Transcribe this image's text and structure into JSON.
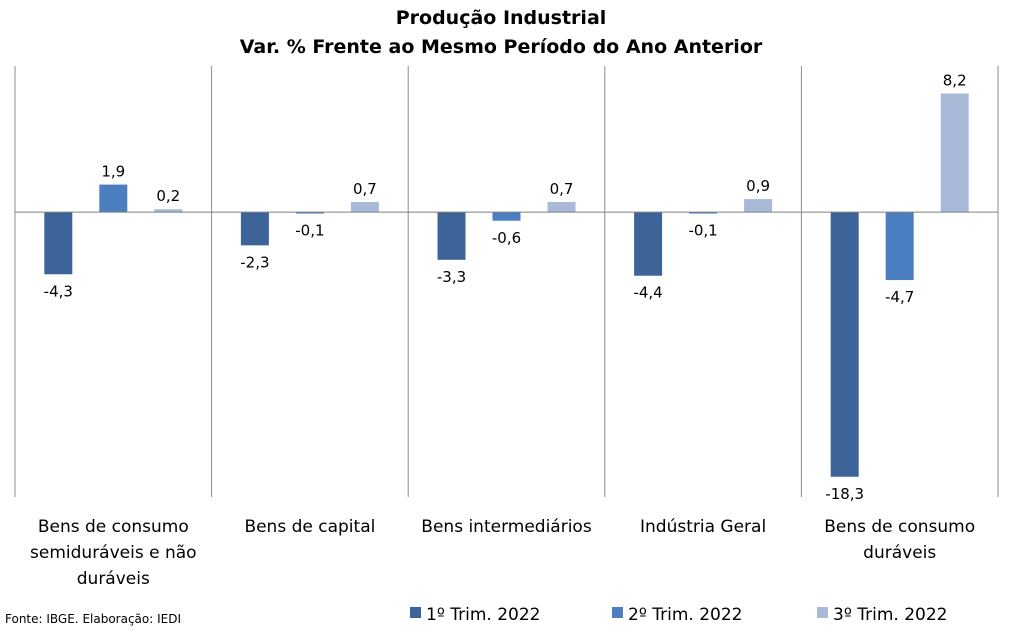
{
  "chart_data": {
    "type": "bar",
    "title": "Produção Industrial",
    "subtitle": "Var. % Frente ao Mesmo Período do Ano Anterior",
    "categories": [
      "Bens de consumo semiduráveis e não duráveis",
      "Bens de capital",
      "Bens intermediários",
      "Indústria Geral",
      "Bens de consumo duráveis"
    ],
    "category_lines": [
      [
        "Bens de consumo",
        "semiduráveis e não",
        "duráveis"
      ],
      [
        "Bens de capital"
      ],
      [
        "Bens intermediários"
      ],
      [
        "Indústria Geral"
      ],
      [
        "Bens de consumo",
        "duráveis"
      ]
    ],
    "series": [
      {
        "name": "1º Trim. 2022",
        "color": "#3d6499",
        "values": [
          -4.3,
          -2.3,
          -3.3,
          -4.4,
          -18.3
        ],
        "labels": [
          "-4,3",
          "-2,3",
          "-3,3",
          "-4,4",
          "-18,3"
        ]
      },
      {
        "name": "2º Trim. 2022",
        "color": "#4b7fc1",
        "values": [
          1.9,
          -0.1,
          -0.6,
          -0.1,
          -4.7
        ],
        "labels": [
          "1,9",
          "-0,1",
          "-0,6",
          "-0,1",
          "-4,7"
        ]
      },
      {
        "name": "3º Trim. 2022",
        "color": "#a9b9d8",
        "values": [
          0.2,
          0.7,
          0.7,
          0.9,
          8.2
        ],
        "labels": [
          "0,2",
          "0,7",
          "0,7",
          "0,9",
          "8,2"
        ]
      }
    ],
    "ylim": [
      -19.7,
      10.1
    ],
    "grid": false,
    "legend_position": "bottom"
  },
  "source": "Fonte: IBGE. Elaboração: IEDI"
}
